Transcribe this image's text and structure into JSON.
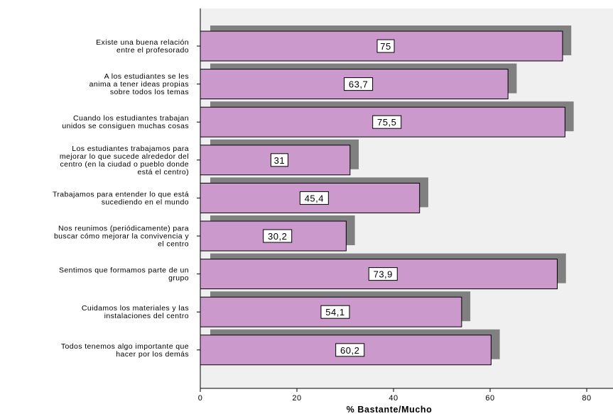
{
  "chart_data": {
    "type": "bar",
    "orientation": "horizontal",
    "categories": [
      [
        "Existe una buena relación",
        "entre el profesorado"
      ],
      [
        "A los estudiantes se les",
        "anima a tener ideas propias",
        "sobre todos los temas"
      ],
      [
        "Cuando los estudiantes trabajan",
        "unidos se consiguen muchas cosas"
      ],
      [
        "Los estudiantes trabajamos para",
        "mejorar lo que sucede alrededor del",
        "centro (en la ciudad o pueblo donde",
        "está el centro)"
      ],
      [
        "Trabajamos para entender lo que está",
        "sucediendo en el mundo"
      ],
      [
        "Nos reunimos (periódicamente) para",
        "buscar cómo mejorar la convivencia y",
        "el centro"
      ],
      [
        "Sentimos que formamos parte de un",
        "grupo"
      ],
      [
        "Cuidamos los materiales y las",
        "instalaciones del centro"
      ],
      [
        "Todos tenemos algo importante que",
        "hacer por los demás"
      ]
    ],
    "values": [
      75,
      63.7,
      75.5,
      31,
      45.4,
      30.2,
      73.9,
      54.1,
      60.2
    ],
    "value_labels": [
      "75",
      "63,7",
      "75,5",
      "31",
      "45,4",
      "30,2",
      "73,9",
      "54,1",
      "60,2"
    ],
    "x_ticks": [
      0,
      20,
      40,
      60,
      80
    ],
    "xlim": [
      0,
      85
    ],
    "xlabel": "% Bastante/Mucho",
    "ylabel": "",
    "title": "",
    "grid": false,
    "legend": "none",
    "colors": {
      "bar_fill": "#cc99cc",
      "bar_shadow": "#808080",
      "plot_background": "#f0f0f0",
      "page_background": "#ffffff"
    }
  }
}
